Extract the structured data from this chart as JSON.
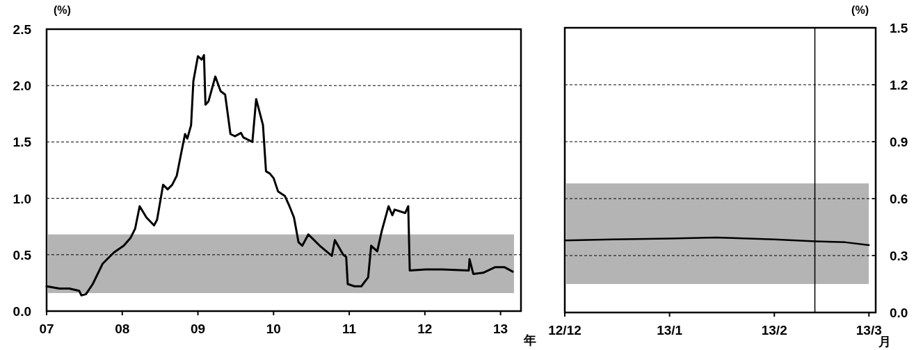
{
  "chart_data": [
    {
      "type": "line",
      "ylabel": "(%)",
      "xlabel": "年",
      "xlim": [
        2007,
        2013.27
      ],
      "xticks": [
        {
          "value": 2007,
          "label": "07"
        },
        {
          "value": 2008,
          "label": "08"
        },
        {
          "value": 2009,
          "label": "09"
        },
        {
          "value": 2010,
          "label": "10"
        },
        {
          "value": 2011,
          "label": "11"
        },
        {
          "value": 2012,
          "label": "12"
        },
        {
          "value": 2013,
          "label": "13"
        }
      ],
      "ylim": [
        0,
        2.5
      ],
      "yticks": [
        {
          "value": 0,
          "label": "0.0"
        },
        {
          "value": 0.5,
          "label": "0.5"
        },
        {
          "value": 1,
          "label": "1.0"
        },
        {
          "value": 1.5,
          "label": "1.5"
        },
        {
          "value": 2,
          "label": "2.0"
        },
        {
          "value": 2.5,
          "label": "2.5"
        }
      ],
      "grid": "y",
      "bands": [
        {
          "axis": "y",
          "from": 0.16,
          "to": 0.68,
          "color": "#b4b4b4"
        }
      ],
      "series": [
        {
          "color": "#000000",
          "x": [
            2007.0,
            2007.17,
            2007.3,
            2007.43,
            2007.46,
            2007.52,
            2007.61,
            2007.74,
            2007.89,
            2008.02,
            2008.11,
            2008.17,
            2008.23,
            2008.32,
            2008.42,
            2008.46,
            2008.54,
            2008.6,
            2008.66,
            2008.72,
            2008.77,
            2008.83,
            2008.86,
            2008.91,
            2008.94,
            2009.0,
            2009.05,
            2009.08,
            2009.1,
            2009.14,
            2009.23,
            2009.3,
            2009.36,
            2009.43,
            2009.49,
            2009.57,
            2009.6,
            2009.72,
            2009.77,
            2009.86,
            2009.9,
            2009.95,
            2010.0,
            2010.06,
            2010.15,
            2010.21,
            2010.27,
            2010.33,
            2010.38,
            2010.46,
            2010.61,
            2010.77,
            2010.81,
            2010.92,
            2010.96,
            2010.98,
            2011.07,
            2011.16,
            2011.25,
            2011.29,
            2011.37,
            2011.43,
            2011.52,
            2011.57,
            2011.6,
            2011.74,
            2011.78,
            2011.8,
            2012.01,
            2012.23,
            2012.58,
            2012.59,
            2012.64,
            2012.77,
            2012.93,
            2013.05,
            2013.16
          ],
          "values": [
            0.22,
            0.2,
            0.2,
            0.18,
            0.14,
            0.15,
            0.24,
            0.42,
            0.52,
            0.58,
            0.65,
            0.73,
            0.93,
            0.83,
            0.76,
            0.81,
            1.12,
            1.08,
            1.12,
            1.2,
            1.37,
            1.57,
            1.53,
            1.65,
            2.04,
            2.26,
            2.23,
            2.27,
            1.83,
            1.86,
            2.08,
            1.95,
            1.92,
            1.57,
            1.55,
            1.58,
            1.54,
            1.5,
            1.88,
            1.65,
            1.24,
            1.22,
            1.18,
            1.06,
            1.02,
            0.93,
            0.83,
            0.61,
            0.58,
            0.68,
            0.58,
            0.49,
            0.63,
            0.5,
            0.48,
            0.24,
            0.22,
            0.22,
            0.3,
            0.58,
            0.53,
            0.71,
            0.93,
            0.85,
            0.9,
            0.87,
            0.93,
            0.36,
            0.37,
            0.37,
            0.36,
            0.46,
            0.33,
            0.34,
            0.39,
            0.39,
            0.35
          ]
        }
      ]
    },
    {
      "type": "line",
      "y2label": "(%)",
      "xlabel": "月",
      "xlim": [
        "2012-12-01",
        "2013-03-03"
      ],
      "xticks": [
        {
          "value": "2012-12-01",
          "label": "12/12"
        },
        {
          "value": "2013-01-01",
          "label": "13/1"
        },
        {
          "value": "2013-02-01",
          "label": "13/2"
        },
        {
          "value": "2013-03-01",
          "label": "13/3"
        }
      ],
      "y2lim": [
        0,
        1.5
      ],
      "y2ticks": [
        {
          "value": 0,
          "label": "0.0"
        },
        {
          "value": 0.3,
          "label": "0.3"
        },
        {
          "value": 0.6,
          "label": "0.6"
        },
        {
          "value": 0.9,
          "label": "0.9"
        },
        {
          "value": 1.2,
          "label": "1.2"
        },
        {
          "value": 1.5,
          "label": "1.5"
        }
      ],
      "grid": "y",
      "bands": [
        {
          "axis": "y2",
          "from": 0.15,
          "to": 0.68,
          "color": "#b4b4b4"
        }
      ],
      "ref_lines": [
        {
          "axis": "x",
          "value": "2013-02-13",
          "color": "#000000"
        }
      ],
      "series": [
        {
          "color": "#000000",
          "axis": "y2",
          "x": [
            "2012-12-01",
            "2012-12-15",
            "2013-01-01",
            "2013-01-15",
            "2013-02-01",
            "2013-02-13",
            "2013-02-22",
            "2013-03-01"
          ],
          "values": [
            0.38,
            0.385,
            0.39,
            0.395,
            0.385,
            0.375,
            0.37,
            0.355
          ]
        }
      ]
    }
  ]
}
